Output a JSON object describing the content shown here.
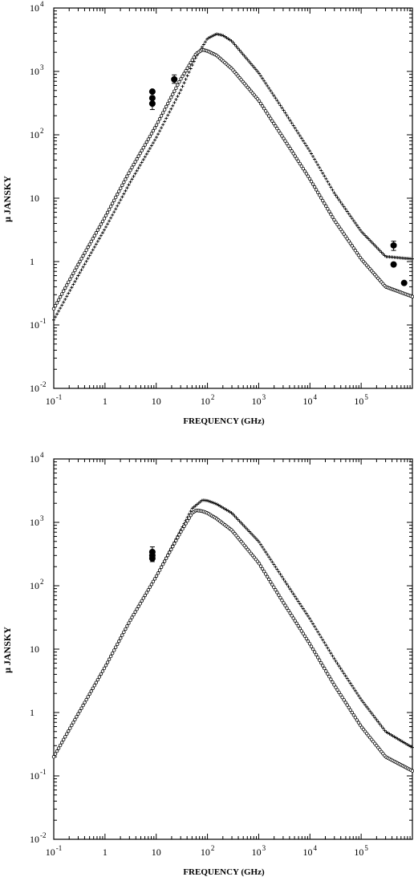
{
  "chart_data": [
    {
      "type": "scatter",
      "xlabel": "FREQUENCY (GHz)",
      "ylabel": "μ JANSKY",
      "xscale": "log",
      "yscale": "log",
      "xlim": [
        0.1,
        1000000
      ],
      "ylim": [
        0.01,
        10000
      ],
      "grid": false,
      "x_ticks": [
        {
          "base": "10",
          "exp": "-1"
        },
        {
          "base": "1",
          "exp": ""
        },
        {
          "base": "10",
          "exp": ""
        },
        {
          "base": "10",
          "exp": "2"
        },
        {
          "base": "10",
          "exp": "3"
        },
        {
          "base": "10",
          "exp": "4"
        },
        {
          "base": "10",
          "exp": "5"
        }
      ],
      "y_ticks": [
        {
          "base": "10",
          "exp": "-2"
        },
        {
          "base": "10",
          "exp": "-1"
        },
        {
          "base": "1",
          "exp": ""
        },
        {
          "base": "10",
          "exp": ""
        },
        {
          "base": "10",
          "exp": "2"
        },
        {
          "base": "10",
          "exp": "3"
        },
        {
          "base": "10",
          "exp": "4"
        }
      ],
      "series": [
        {
          "marker": "plus",
          "x": [
            0.1,
            0.3,
            1,
            3,
            10,
            30,
            60,
            100,
            150,
            200,
            300,
            1000,
            3000,
            10000,
            30000,
            100000,
            300000,
            1000000
          ],
          "y": [
            0.12,
            0.6,
            3.3,
            17,
            90,
            500,
            1700,
            3300,
            3900,
            3700,
            3000,
            950,
            250,
            55,
            12,
            3,
            1.2,
            1.1
          ]
        },
        {
          "marker": "circle",
          "x": [
            0.1,
            0.3,
            1,
            3,
            10,
            30,
            60,
            80,
            100,
            150,
            300,
            1000,
            3000,
            10000,
            30000,
            100000,
            300000,
            1000000
          ],
          "y": [
            0.18,
            0.9,
            5,
            26,
            140,
            750,
            1900,
            2200,
            2100,
            1800,
            1100,
            350,
            90,
            20,
            4.5,
            1.1,
            0.4,
            0.28
          ]
        }
      ],
      "observations": [
        {
          "x": 8.4,
          "y": 480,
          "err": [
            0,
            0
          ]
        },
        {
          "x": 8.4,
          "y": 380,
          "err": [
            0,
            0
          ]
        },
        {
          "x": 8.4,
          "y": 310,
          "err": [
            250,
            380
          ]
        },
        {
          "x": 22.5,
          "y": 750,
          "err": [
            650,
            880
          ]
        },
        {
          "x": 430000,
          "y": 1.8,
          "err": [
            1.5,
            2.1
          ]
        },
        {
          "x": 430000,
          "y": 0.9,
          "err": [
            0,
            0
          ]
        },
        {
          "x": 690000,
          "y": 0.46,
          "err": [
            0,
            0
          ]
        }
      ]
    },
    {
      "type": "scatter",
      "xlabel": "FREQUENCY (GHz)",
      "ylabel": "μ JANSKY",
      "xscale": "log",
      "yscale": "log",
      "xlim": [
        0.1,
        1000000
      ],
      "ylim": [
        0.01,
        10000
      ],
      "grid": false,
      "x_ticks": [
        {
          "base": "10",
          "exp": "-1"
        },
        {
          "base": "1",
          "exp": ""
        },
        {
          "base": "10",
          "exp": ""
        },
        {
          "base": "10",
          "exp": "2"
        },
        {
          "base": "10",
          "exp": "3"
        },
        {
          "base": "10",
          "exp": "4"
        },
        {
          "base": "10",
          "exp": "5"
        }
      ],
      "y_ticks": [
        {
          "base": "10",
          "exp": "-2"
        },
        {
          "base": "10",
          "exp": "-1"
        },
        {
          "base": "1",
          "exp": ""
        },
        {
          "base": "10",
          "exp": ""
        },
        {
          "base": "10",
          "exp": "2"
        },
        {
          "base": "10",
          "exp": "3"
        },
        {
          "base": "10",
          "exp": "4"
        }
      ],
      "series": [
        {
          "marker": "plus",
          "x": [
            0.1,
            0.3,
            1,
            3,
            10,
            30,
            50,
            80,
            100,
            150,
            300,
            1000,
            3000,
            10000,
            30000,
            100000,
            300000,
            1000000
          ],
          "y": [
            0.2,
            0.95,
            5.2,
            27,
            140,
            750,
            1650,
            2250,
            2200,
            1950,
            1400,
            500,
            130,
            30,
            7,
            1.6,
            0.5,
            0.28
          ]
        },
        {
          "marker": "circle",
          "x": [
            0.1,
            0.3,
            1,
            3,
            10,
            30,
            50,
            60,
            80,
            100,
            150,
            300,
            1000,
            3000,
            10000,
            30000,
            100000,
            300000,
            1000000
          ],
          "y": [
            0.2,
            0.95,
            5.2,
            27,
            140,
            700,
            1400,
            1550,
            1500,
            1400,
            1150,
            750,
            230,
            55,
            12,
            2.7,
            0.6,
            0.2,
            0.12
          ]
        }
      ],
      "observations": [
        {
          "x": 8.4,
          "y": 340,
          "err": [
            0,
            0
          ]
        },
        {
          "x": 8.4,
          "y": 300,
          "err": [
            240,
            410
          ]
        },
        {
          "x": 8.4,
          "y": 270,
          "err": [
            0,
            0
          ]
        }
      ]
    }
  ]
}
